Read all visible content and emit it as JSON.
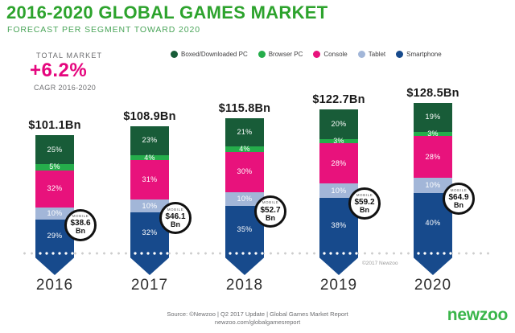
{
  "header": {
    "title": "2016-2020 GLOBAL GAMES MARKET",
    "subtitle": "FORECAST PER SEGMENT TOWARD 2020",
    "title_color": "#2da32d"
  },
  "total_market": {
    "label": "TOTAL MARKET",
    "value": "+6.2%",
    "sublabel": "CAGR 2016-2020",
    "accent_color": "#e5067e"
  },
  "legend": [
    {
      "label": "Boxed/Downloaded PC",
      "color": "#185c38"
    },
    {
      "label": "Browser PC",
      "color": "#25ad4b"
    },
    {
      "label": "Console",
      "color": "#e8127c"
    },
    {
      "label": "Tablet",
      "color": "#a2b6d8"
    },
    {
      "label": "Smartphone",
      "color": "#174a8c"
    }
  ],
  "chart_data": {
    "type": "bar",
    "stacked": true,
    "unit": "USD billions",
    "categories": [
      "2016",
      "2017",
      "2018",
      "2019",
      "2020"
    ],
    "totals": [
      101.1,
      108.9,
      115.8,
      122.7,
      128.5
    ],
    "total_labels": [
      "$101.1Bn",
      "$108.9Bn",
      "$115.8Bn",
      "$122.7Bn",
      "$128.5Bn"
    ],
    "series": [
      {
        "name": "Boxed/Downloaded PC",
        "color": "#185c38",
        "values_pct": [
          25,
          23,
          21,
          20,
          19
        ]
      },
      {
        "name": "Browser PC",
        "color": "#25ad4b",
        "values_pct": [
          5,
          4,
          4,
          3,
          3
        ]
      },
      {
        "name": "Console",
        "color": "#e8127c",
        "values_pct": [
          32,
          31,
          30,
          28,
          28
        ]
      },
      {
        "name": "Tablet",
        "color": "#a2b6d8",
        "values_pct": [
          10,
          10,
          10,
          10,
          10
        ]
      },
      {
        "name": "Smartphone",
        "color": "#174a8c",
        "values_pct": [
          29,
          32,
          35,
          38,
          40
        ]
      }
    ],
    "percent_labels": [
      [
        "25%",
        "5%",
        "32%",
        "10%",
        "29%"
      ],
      [
        "23%",
        "4%",
        "31%",
        "10%",
        "32%"
      ],
      [
        "21%",
        "4%",
        "30%",
        "10%",
        "35%"
      ],
      [
        "20%",
        "3%",
        "28%",
        "10%",
        "38%"
      ],
      [
        "19%",
        "3%",
        "28%",
        "10%",
        "40%"
      ]
    ],
    "mobile_badges": [
      {
        "label": "MOBILE",
        "value": "$38.6",
        "unit": "Bn",
        "value_bn": 38.6
      },
      {
        "label": "MOBILE",
        "value": "$46.1",
        "unit": "Bn",
        "value_bn": 46.1
      },
      {
        "label": "MOBILE",
        "value": "$52.7",
        "unit": "Bn",
        "value_bn": 52.7
      },
      {
        "label": "MOBILE",
        "value": "$59.2",
        "unit": "Bn",
        "value_bn": 59.2
      },
      {
        "label": "MOBILE",
        "value": "$64.9",
        "unit": "Bn",
        "value_bn": 64.9
      }
    ],
    "watermark": "©2017 Newzoo",
    "ylabel": "",
    "xlabel": "",
    "grid": false,
    "legend_position": "top-right"
  },
  "footer": {
    "source_line1": "Source: ©Newzoo | Q2 2017 Update | Global Games Market Report",
    "source_line2": "newzoo.com/globalgamesreport",
    "logo": "newzoo"
  }
}
